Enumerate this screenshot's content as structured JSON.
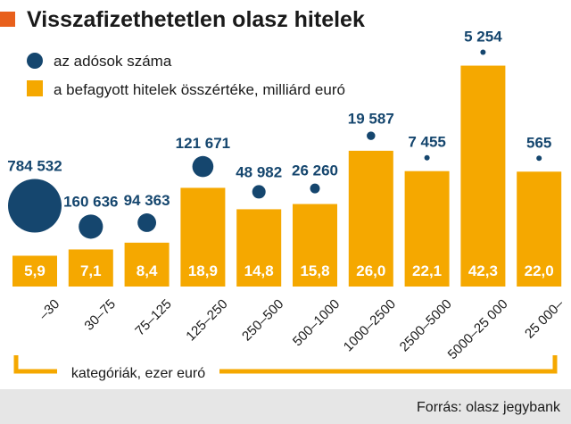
{
  "colors": {
    "bar": "#f5a800",
    "bubble": "#15466e",
    "title_marker": "#e8601c",
    "source_band": "#e6e6e6",
    "bracket": "#f5a800"
  },
  "chart_data": {
    "type": "bar",
    "title": "Visszafizethetetlen olasz hitelek",
    "xlabel": "kategóriák, ezer euró",
    "categories": [
      "–30",
      "30–75",
      "75–125",
      "125–250",
      "250–500",
      "500–1000",
      "1000–2500",
      "2500–5000",
      "5000–25 000",
      "25 000–"
    ],
    "series": [
      {
        "name": "a befagyott hitelek összértéke, milliárd euró",
        "kind": "bar",
        "values": [
          5.9,
          7.1,
          8.4,
          18.9,
          14.8,
          15.8,
          26.0,
          22.1,
          42.3,
          22.0
        ],
        "labels": [
          "5,9",
          "7,1",
          "8,4",
          "18,9",
          "14,8",
          "15,8",
          "26,0",
          "22,1",
          "42,3",
          "22,0"
        ]
      },
      {
        "name": "az adósok száma",
        "kind": "bubble",
        "values": [
          784532,
          160636,
          94363,
          121671,
          48982,
          26260,
          19587,
          7455,
          5254,
          565
        ],
        "labels": [
          "784 532",
          "160 636",
          "94 363",
          "121 671",
          "48 982",
          "26 260",
          "19 587",
          "7 455",
          "5 254",
          "565"
        ]
      }
    ],
    "legend": "top-left",
    "source": "Forrás: olasz jegybank"
  }
}
